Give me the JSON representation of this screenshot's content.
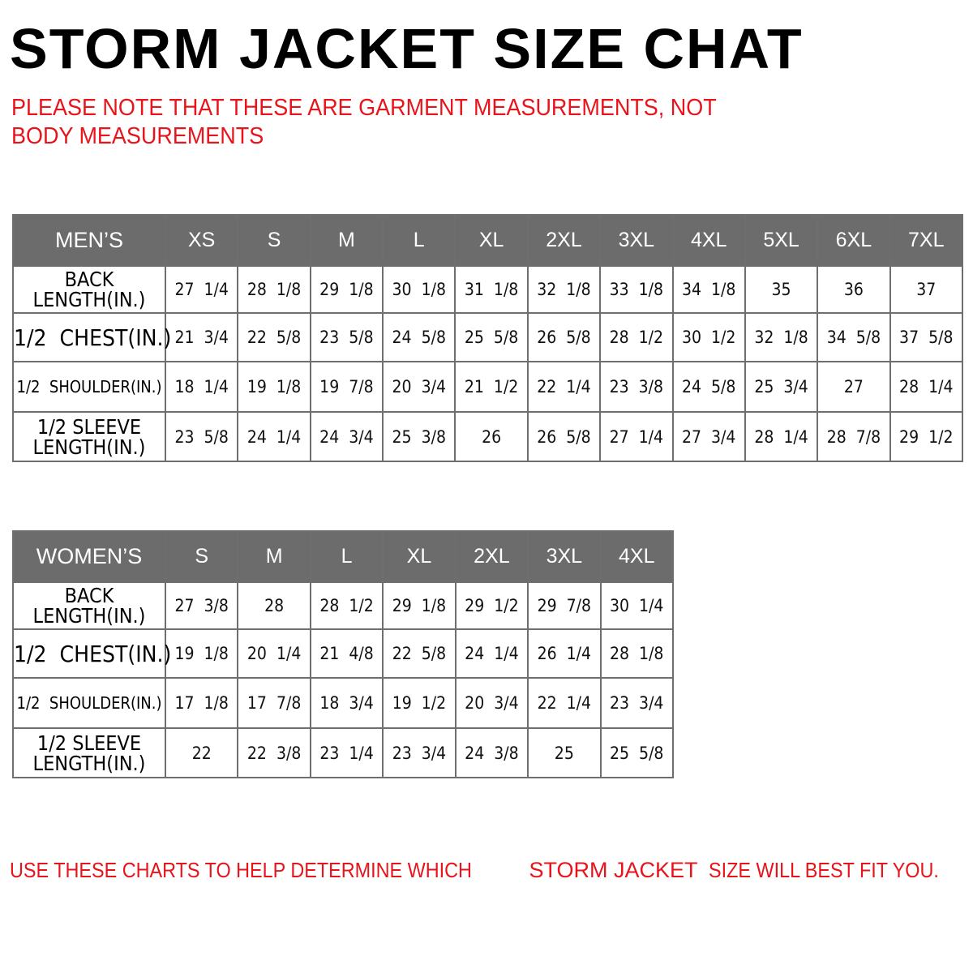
{
  "title": "STORM JACKET SIZE CHAT",
  "note": "PLEASE NOTE THAT THESE ARE GARMENT MEASUREMENTS, NOT BODY MEASUREMENTS",
  "colors": {
    "header_bg": "#6c6c6c",
    "note_red": "#e8141b"
  },
  "mens": {
    "header": "MEN’S",
    "sizes": [
      "XS",
      "S",
      "M",
      "L",
      "XL",
      "2XL",
      "3XL",
      "4XL",
      "5XL",
      "6XL",
      "7XL"
    ],
    "rows": [
      {
        "label": "BACK LENGTH(IN.)",
        "values": [
          "27  1/4",
          "28  1/8",
          "29  1/8",
          "30  1/8",
          "31  1/8",
          "32  1/8",
          "33  1/8",
          "34  1/8",
          "35",
          "36",
          "37"
        ]
      },
      {
        "label": "1/2  CHEST(IN.)",
        "values": [
          "21  3/4",
          "22  5/8",
          "23  5/8",
          "24  5/8",
          "25  5/8",
          "26  5/8",
          "28  1/2",
          "30  1/2",
          "32  1/8",
          "34  5/8",
          "37  5/8"
        ]
      },
      {
        "label": "1/2  SHOULDER(IN.)",
        "values": [
          "18  1/4",
          "19  1/8",
          "19  7/8",
          "20  3/4",
          "21  1/2",
          "22  1/4",
          "23  3/8",
          "24  5/8",
          "25  3/4",
          "27",
          "28  1/4"
        ]
      },
      {
        "label": "1/2  SLEEVE LENGTH(IN.)",
        "values": [
          "23  5/8",
          "24  1/4",
          "24  3/4",
          "25  3/8",
          "26",
          "26  5/8",
          "27  1/4",
          "27  3/4",
          "28  1/4",
          "28  7/8",
          "29  1/2"
        ]
      }
    ]
  },
  "womens": {
    "header": "WOMEN’S",
    "sizes": [
      "S",
      "M",
      "L",
      "XL",
      "2XL",
      "3XL",
      "4XL"
    ],
    "rows": [
      {
        "label": "BACK LENGTH(IN.)",
        "values": [
          "27  3/8",
          "28",
          "28  1/2",
          "29  1/8",
          "29  1/2",
          "29  7/8",
          "30  1/4"
        ]
      },
      {
        "label": "1/2  CHEST(IN.)",
        "values": [
          "19  1/8",
          "20  1/4",
          "21  4/8",
          "22  5/8",
          "24  1/4",
          "26  1/4",
          "28  1/8"
        ]
      },
      {
        "label": "1/2  SHOULDER(IN.)",
        "values": [
          "17  1/8",
          "17  7/8",
          "18  3/4",
          "19  1/2",
          "20  3/4",
          "22  1/4",
          "23  3/4"
        ]
      },
      {
        "label": "1/2  SLEEVE LENGTH(IN.)",
        "values": [
          "22",
          "22  3/8",
          "23  1/4",
          "23  3/4",
          "24  3/8",
          "25",
          "25  5/8"
        ]
      }
    ]
  },
  "footer": {
    "part1": "USE THESE CHARTS TO HELP DETERMINE WHICH ",
    "brand": "STORM JACKET",
    "part2": "  SIZE WILL BEST FIT YOU."
  }
}
